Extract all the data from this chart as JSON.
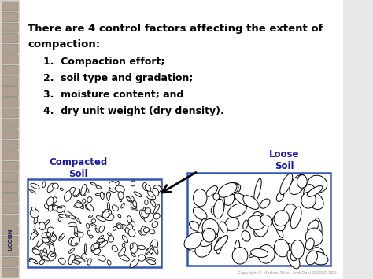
{
  "bg_color": "#e8e8e8",
  "slide_bg": "#ffffff",
  "title_line1": "There are 4 control factors affecting the extent of",
  "title_line2": "compaction:",
  "items": [
    "1.  Compaction effort;",
    "2.  soil type and gradation;",
    "3.  moisture content; and",
    "4.  dry unit weight (dry density)."
  ],
  "label_compacted": "Compacted\nSoil",
  "label_loose": "Loose\nSoil",
  "copyright": "Copyright© Markus Tuller and Dani 0i2002-2004",
  "title_fontsize": 9.5,
  "item_fontsize": 9.0,
  "label_fontsize": 8.5,
  "label_color": "#1a1aaa",
  "border_color": "#3355bb",
  "binding_color": "#b0a090",
  "binding_edge": "#888878"
}
